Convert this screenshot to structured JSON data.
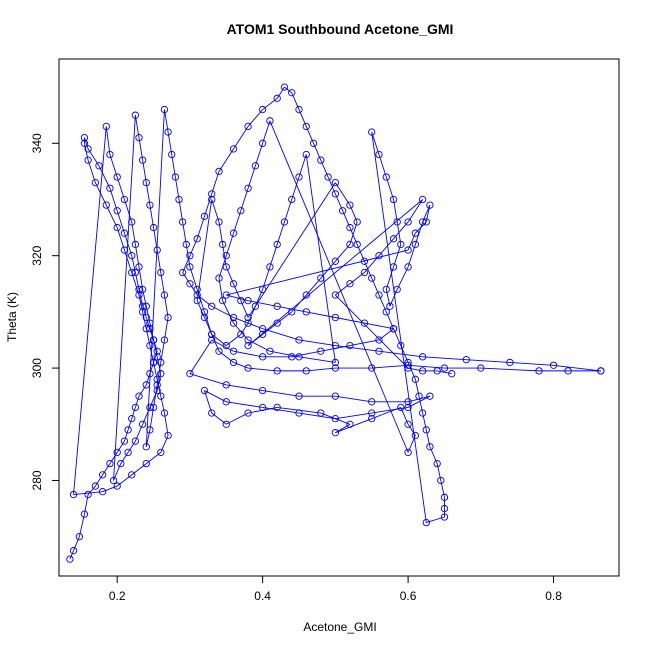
{
  "chart_data": {
    "type": "scatter",
    "style": "points-and-lines",
    "title": "ATOM1 Southbound Acetone_GMI",
    "xlabel": "Acetone_GMI",
    "ylabel": "Theta (K)",
    "xlim": [
      0.12,
      0.89
    ],
    "ylim": [
      263,
      355
    ],
    "xticks": [
      0.2,
      0.4,
      0.6,
      0.8
    ],
    "xtick_labels": [
      "0.2",
      "0.4",
      "0.6",
      "0.8"
    ],
    "yticks": [
      280,
      300,
      320,
      340
    ],
    "ytick_labels": [
      "280",
      "300",
      "320",
      "340"
    ],
    "grid": false,
    "legend": "none",
    "series": [
      {
        "color": "#0000ff",
        "points": [
          [
            0.135,
            266
          ],
          [
            0.14,
            267.5
          ],
          [
            0.148,
            270
          ],
          [
            0.155,
            274
          ],
          [
            0.16,
            277.5
          ],
          [
            0.17,
            279
          ],
          [
            0.18,
            281
          ],
          [
            0.19,
            283
          ],
          [
            0.2,
            285
          ],
          [
            0.21,
            287
          ],
          [
            0.215,
            289
          ],
          [
            0.22,
            291
          ],
          [
            0.225,
            293
          ],
          [
            0.23,
            295
          ],
          [
            0.24,
            297
          ],
          [
            0.245,
            299
          ],
          [
            0.25,
            301
          ],
          [
            0.255,
            303
          ],
          [
            0.25,
            305
          ],
          [
            0.245,
            307
          ],
          [
            0.24,
            309
          ],
          [
            0.235,
            311
          ],
          [
            0.23,
            314
          ],
          [
            0.225,
            317
          ],
          [
            0.22,
            320
          ],
          [
            0.21,
            324
          ],
          [
            0.2,
            328
          ],
          [
            0.19,
            332
          ],
          [
            0.175,
            336
          ],
          [
            0.16,
            339
          ],
          [
            0.155,
            341
          ],
          [
            0.155,
            340
          ],
          [
            0.16,
            337
          ],
          [
            0.17,
            333
          ],
          [
            0.185,
            329
          ],
          [
            0.2,
            325
          ],
          [
            0.21,
            321
          ],
          [
            0.22,
            317
          ],
          [
            0.23,
            313
          ],
          [
            0.235,
            310
          ],
          [
            0.24,
            307
          ],
          [
            0.245,
            304
          ],
          [
            0.25,
            301
          ],
          [
            0.255,
            298
          ],
          [
            0.26,
            295
          ],
          [
            0.265,
            292
          ],
          [
            0.27,
            288
          ],
          [
            0.26,
            285
          ],
          [
            0.24,
            283
          ],
          [
            0.22,
            281
          ],
          [
            0.2,
            279
          ],
          [
            0.18,
            278
          ],
          [
            0.14,
            277.5
          ],
          [
            0.185,
            343
          ],
          [
            0.19,
            338
          ],
          [
            0.2,
            334
          ],
          [
            0.21,
            330
          ],
          [
            0.22,
            326
          ],
          [
            0.225,
            322
          ],
          [
            0.23,
            318
          ],
          [
            0.235,
            314
          ],
          [
            0.24,
            311
          ],
          [
            0.245,
            308
          ],
          [
            0.25,
            305
          ],
          [
            0.255,
            302
          ],
          [
            0.26,
            299
          ],
          [
            0.255,
            296
          ],
          [
            0.245,
            293
          ],
          [
            0.235,
            290
          ],
          [
            0.225,
            287
          ],
          [
            0.215,
            285
          ],
          [
            0.205,
            283
          ],
          [
            0.195,
            280
          ],
          [
            0.225,
            345
          ],
          [
            0.23,
            341
          ],
          [
            0.235,
            337
          ],
          [
            0.24,
            333
          ],
          [
            0.245,
            329
          ],
          [
            0.25,
            325
          ],
          [
            0.255,
            321
          ],
          [
            0.26,
            317
          ],
          [
            0.265,
            313
          ],
          [
            0.27,
            309
          ],
          [
            0.265,
            305
          ],
          [
            0.26,
            301
          ],
          [
            0.255,
            297
          ],
          [
            0.25,
            293
          ],
          [
            0.245,
            289
          ],
          [
            0.24,
            286
          ],
          [
            0.265,
            346
          ],
          [
            0.27,
            342
          ],
          [
            0.275,
            338
          ],
          [
            0.28,
            334
          ],
          [
            0.285,
            330
          ],
          [
            0.29,
            326
          ],
          [
            0.295,
            322
          ],
          [
            0.3,
            318
          ],
          [
            0.31,
            314
          ],
          [
            0.32,
            310
          ],
          [
            0.33,
            306
          ],
          [
            0.34,
            303
          ],
          [
            0.36,
            301
          ],
          [
            0.38,
            300
          ],
          [
            0.42,
            299.5
          ],
          [
            0.46,
            299.5
          ],
          [
            0.5,
            300
          ],
          [
            0.55,
            300
          ],
          [
            0.6,
            300.5
          ],
          [
            0.65,
            300
          ],
          [
            0.7,
            300
          ],
          [
            0.78,
            299.5
          ],
          [
            0.82,
            299.5
          ],
          [
            0.865,
            299.5
          ],
          [
            0.865,
            299.5
          ],
          [
            0.8,
            300.5
          ],
          [
            0.74,
            301
          ],
          [
            0.68,
            301.5
          ],
          [
            0.62,
            302
          ],
          [
            0.56,
            303
          ],
          [
            0.5,
            304
          ],
          [
            0.45,
            305
          ],
          [
            0.4,
            307
          ],
          [
            0.36,
            309
          ],
          [
            0.33,
            311
          ],
          [
            0.31,
            313
          ],
          [
            0.3,
            315
          ],
          [
            0.29,
            317
          ],
          [
            0.3,
            320
          ],
          [
            0.31,
            323
          ],
          [
            0.32,
            327
          ],
          [
            0.33,
            331
          ],
          [
            0.34,
            335
          ],
          [
            0.36,
            339
          ],
          [
            0.38,
            343
          ],
          [
            0.4,
            346
          ],
          [
            0.42,
            348
          ],
          [
            0.43,
            350
          ],
          [
            0.44,
            349
          ],
          [
            0.45,
            346
          ],
          [
            0.46,
            343
          ],
          [
            0.47,
            340
          ],
          [
            0.48,
            337
          ],
          [
            0.49,
            334
          ],
          [
            0.5,
            331
          ],
          [
            0.51,
            328
          ],
          [
            0.52,
            325
          ],
          [
            0.53,
            322
          ],
          [
            0.54,
            319
          ],
          [
            0.55,
            316
          ],
          [
            0.56,
            313
          ],
          [
            0.57,
            310
          ],
          [
            0.58,
            307
          ],
          [
            0.59,
            304
          ],
          [
            0.6,
            301
          ],
          [
            0.61,
            298
          ],
          [
            0.615,
            295
          ],
          [
            0.62,
            292
          ],
          [
            0.625,
            289
          ],
          [
            0.63,
            286
          ],
          [
            0.64,
            283
          ],
          [
            0.645,
            280
          ],
          [
            0.65,
            277
          ],
          [
            0.65,
            275
          ],
          [
            0.65,
            273.5
          ],
          [
            0.625,
            272.5
          ],
          [
            0.55,
            342
          ],
          [
            0.56,
            338
          ],
          [
            0.57,
            334
          ],
          [
            0.58,
            330
          ],
          [
            0.585,
            326
          ],
          [
            0.59,
            322
          ],
          [
            0.58,
            318
          ],
          [
            0.57,
            314
          ],
          [
            0.575,
            311
          ],
          [
            0.585,
            314
          ],
          [
            0.6,
            318
          ],
          [
            0.61,
            322
          ],
          [
            0.62,
            326
          ],
          [
            0.63,
            329
          ],
          [
            0.625,
            326
          ],
          [
            0.61,
            324
          ],
          [
            0.6,
            321
          ],
          [
            0.35,
            313
          ],
          [
            0.38,
            312
          ],
          [
            0.42,
            311
          ],
          [
            0.46,
            310
          ],
          [
            0.5,
            309
          ],
          [
            0.54,
            308
          ],
          [
            0.58,
            307
          ],
          [
            0.56,
            305
          ],
          [
            0.52,
            304
          ],
          [
            0.48,
            303
          ],
          [
            0.44,
            302
          ],
          [
            0.4,
            302
          ],
          [
            0.36,
            303
          ],
          [
            0.33,
            305
          ],
          [
            0.3,
            299
          ],
          [
            0.35,
            297
          ],
          [
            0.4,
            296
          ],
          [
            0.45,
            295
          ],
          [
            0.5,
            295
          ],
          [
            0.55,
            294
          ],
          [
            0.6,
            294
          ],
          [
            0.63,
            295
          ],
          [
            0.6,
            293
          ],
          [
            0.55,
            292
          ],
          [
            0.5,
            291
          ],
          [
            0.45,
            292
          ],
          [
            0.4,
            293
          ],
          [
            0.35,
            294
          ],
          [
            0.32,
            296
          ],
          [
            0.33,
            292
          ],
          [
            0.35,
            290
          ],
          [
            0.38,
            292
          ],
          [
            0.42,
            293
          ],
          [
            0.48,
            292
          ],
          [
            0.52,
            290
          ],
          [
            0.5,
            288.5
          ],
          [
            0.55,
            291
          ],
          [
            0.59,
            293
          ],
          [
            0.6,
            290
          ],
          [
            0.61,
            288
          ],
          [
            0.6,
            285
          ],
          [
            0.41,
            344
          ],
          [
            0.4,
            340
          ],
          [
            0.39,
            336
          ],
          [
            0.38,
            332
          ],
          [
            0.37,
            328
          ],
          [
            0.36,
            324
          ],
          [
            0.35,
            320
          ],
          [
            0.34,
            316
          ],
          [
            0.345,
            312
          ],
          [
            0.36,
            308
          ],
          [
            0.38,
            305
          ],
          [
            0.41,
            303
          ],
          [
            0.45,
            302
          ],
          [
            0.5,
            301
          ],
          [
            0.46,
            338
          ],
          [
            0.45,
            334
          ],
          [
            0.44,
            330
          ],
          [
            0.43,
            326
          ],
          [
            0.42,
            322
          ],
          [
            0.41,
            318
          ],
          [
            0.4,
            314
          ],
          [
            0.39,
            311
          ],
          [
            0.38,
            308
          ],
          [
            0.37,
            306
          ],
          [
            0.35,
            304
          ],
          [
            0.33,
            306
          ],
          [
            0.32,
            309
          ],
          [
            0.31,
            312
          ],
          [
            0.33,
            330
          ],
          [
            0.34,
            326
          ],
          [
            0.345,
            322
          ],
          [
            0.35,
            318
          ],
          [
            0.36,
            315
          ],
          [
            0.37,
            312
          ],
          [
            0.38,
            309
          ],
          [
            0.5,
            333
          ],
          [
            0.52,
            329
          ],
          [
            0.53,
            326
          ],
          [
            0.52,
            322
          ],
          [
            0.5,
            319
          ],
          [
            0.48,
            316
          ],
          [
            0.46,
            313
          ],
          [
            0.44,
            310
          ],
          [
            0.42,
            308
          ],
          [
            0.4,
            306
          ],
          [
            0.38,
            304
          ],
          [
            0.62,
            330
          ],
          [
            0.6,
            326
          ],
          [
            0.58,
            323
          ],
          [
            0.56,
            320
          ],
          [
            0.54,
            317
          ],
          [
            0.52,
            315
          ],
          [
            0.5,
            313
          ],
          [
            0.6,
            300
          ],
          [
            0.62,
            299.5
          ],
          [
            0.64,
            299.5
          ],
          [
            0.66,
            299
          ]
        ]
      }
    ]
  }
}
